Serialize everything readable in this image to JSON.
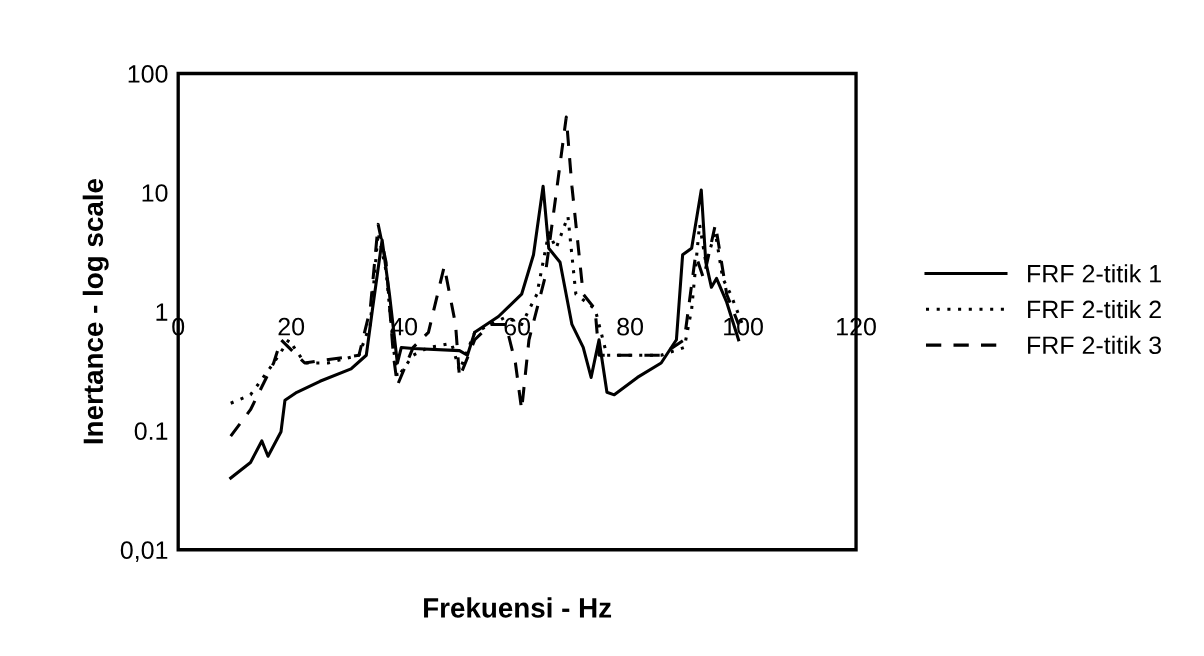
{
  "chart_data": {
    "type": "line",
    "xlabel": "Frekuensi - Hz",
    "ylabel": "Inertance - log scale",
    "log": true,
    "xlim": [
      0,
      120
    ],
    "xticks": [
      0,
      20,
      40,
      60,
      80,
      100,
      120
    ],
    "ylim": [
      0.01,
      100
    ],
    "yticks": [
      {
        "value": 0.01,
        "label": "0,01"
      },
      0.1,
      1,
      10,
      100
    ],
    "grid": false,
    "legend": "right",
    "marker": "none",
    "series": [
      {
        "name": "FRF 2-titik 1",
        "color": "#000000",
        "line_style": "solid",
        "x": [
          9.3,
          12.8,
          14.8,
          15.9,
          18.2,
          18.9,
          21,
          25.1,
          30.6,
          33.3,
          34.4,
          36.1,
          37.4,
          38.8,
          39.5,
          41.6,
          49.8,
          51.2,
          52.5,
          56.7,
          60.8,
          62.9,
          64.6,
          65.6,
          67.6,
          69.7,
          71.7,
          73.1,
          74.5,
          75.9,
          77.2,
          81.3,
          85.5,
          88.2,
          89.3,
          90.9,
          92.6,
          93.4,
          94.4,
          95.3,
          97.1,
          99.2
        ],
        "values": [
          0.04,
          0.054,
          0.082,
          0.061,
          0.098,
          0.18,
          0.21,
          0.26,
          0.33,
          0.43,
          1.05,
          4,
          1.4,
          0.37,
          0.5,
          0.49,
          0.47,
          0.43,
          0.67,
          0.91,
          1.4,
          3,
          11.3,
          3.4,
          2.6,
          0.78,
          0.5,
          0.28,
          0.58,
          0.21,
          0.2,
          0.28,
          0.37,
          0.58,
          3,
          3.4,
          10.5,
          2.6,
          1.6,
          1.9,
          1.2,
          0.58
        ]
      },
      {
        "name": "FRF 2-titik 2",
        "color": "#000000",
        "line_style": "dotted",
        "x": [
          9.3,
          12.8,
          16.9,
          19.6,
          22.4,
          26.5,
          32,
          34,
          35.4,
          36.8,
          38.1,
          38.8,
          41.6,
          44.3,
          48.4,
          49.8,
          52.5,
          58,
          60.8,
          63.5,
          65.6,
          66.9,
          69,
          70.4,
          73.8,
          75.9,
          80,
          85.5,
          89.6,
          90.9,
          92.3,
          93.4,
          95.1,
          96.4,
          97.8,
          99.9
        ],
        "values": [
          0.17,
          0.2,
          0.37,
          0.58,
          0.37,
          0.37,
          0.43,
          0.78,
          4.6,
          2.2,
          0.5,
          0.28,
          0.43,
          0.5,
          0.54,
          0.32,
          0.67,
          0.9,
          0.78,
          1.4,
          4.6,
          3.4,
          6.3,
          1.4,
          1.05,
          0.43,
          0.43,
          0.43,
          0.5,
          1.05,
          5.4,
          2.6,
          4.6,
          1.9,
          1.4,
          0.78
        ]
      },
      {
        "name": "FRF 2-titik 3",
        "color": "#000000",
        "line_style": "dashed",
        "x": [
          9.3,
          12.8,
          16.9,
          18.2,
          22.4,
          32,
          34,
          35.4,
          36.8,
          38.1,
          38.8,
          41.6,
          44.3,
          47.1,
          49.1,
          49.8,
          52.5,
          55.3,
          58,
          59.7,
          60.8,
          62.1,
          64.9,
          66.9,
          68.7,
          69.7,
          71.7,
          73.8,
          74.5,
          80,
          85.5,
          89.6,
          91.6,
          93,
          95.1,
          97.1,
          99.2
        ],
        "values": [
          0.09,
          0.15,
          0.37,
          0.58,
          0.37,
          0.43,
          1.05,
          5.4,
          2.6,
          0.43,
          0.24,
          0.5,
          0.67,
          2.4,
          0.78,
          0.28,
          0.58,
          0.78,
          0.78,
          0.37,
          0.15,
          0.58,
          1.9,
          9.7,
          43,
          11.3,
          1.4,
          1.05,
          0.43,
          0.43,
          0.43,
          0.58,
          3,
          1.9,
          5.4,
          1.4,
          0.78
        ]
      }
    ]
  }
}
